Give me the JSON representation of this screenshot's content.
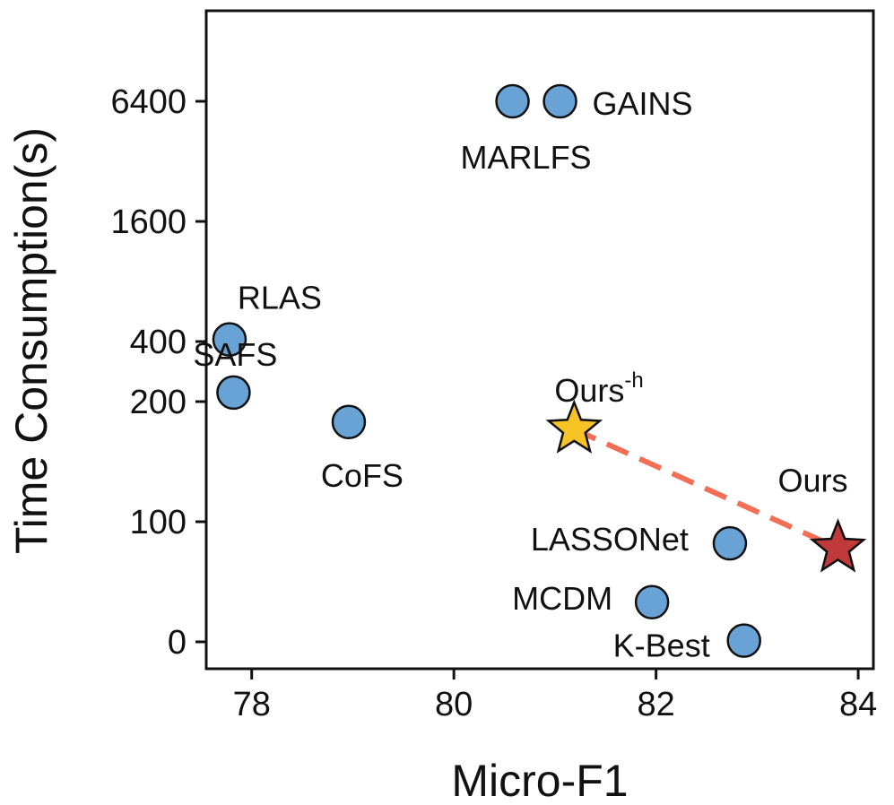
{
  "chart_data": {
    "type": "scatter",
    "xlabel": "Micro-F1",
    "ylabel": "Time Consumption(s)",
    "xlim": [
      77.55,
      84.15
    ],
    "x_ticks": [
      78,
      80,
      82,
      84
    ],
    "y_ticks": [
      {
        "value": 0,
        "label": "0"
      },
      {
        "value": 100,
        "label": "100"
      },
      {
        "value": 200,
        "label": "200"
      },
      {
        "value": 400,
        "label": "400"
      },
      {
        "value": 1600,
        "label": "1600"
      },
      {
        "value": 6400,
        "label": "6400"
      }
    ],
    "points": [
      {
        "name": "GAINS",
        "label": "GAINS",
        "x": 81.05,
        "y": 6400,
        "marker": "circle",
        "color": "#69a3d5"
      },
      {
        "name": "MARLFS",
        "label": "MARLFS",
        "x": 80.58,
        "y": 6400,
        "marker": "circle",
        "color": "#69a3d5"
      },
      {
        "name": "RLAS",
        "label": "RLAS",
        "x": 77.78,
        "y": 410,
        "marker": "circle",
        "color": "#69a3d5"
      },
      {
        "name": "SAFS",
        "label": "SAFS",
        "x": 77.82,
        "y": 222,
        "marker": "circle",
        "color": "#69a3d5"
      },
      {
        "name": "CoFS",
        "label": "CoFS",
        "x": 78.96,
        "y": 183,
        "marker": "circle",
        "color": "#69a3d5"
      },
      {
        "name": "LASSONet",
        "label": "LASSONet",
        "x": 82.73,
        "y": 82,
        "marker": "circle",
        "color": "#69a3d5"
      },
      {
        "name": "MCDM",
        "label": "MCDM",
        "x": 81.96,
        "y": 33,
        "marker": "circle",
        "color": "#69a3d5"
      },
      {
        "name": "K-Best",
        "label": "K-Best",
        "x": 82.87,
        "y": 1,
        "marker": "circle",
        "color": "#69a3d5"
      },
      {
        "name": "Ours-h",
        "label": "Ours",
        "label_sup": "-h",
        "x": 81.19,
        "y": 177,
        "marker": "star",
        "color": "#f7c325"
      },
      {
        "name": "Ours",
        "label": "Ours",
        "x": 83.8,
        "y": 78,
        "marker": "star",
        "color": "#c0393b"
      }
    ],
    "connector": {
      "from": "Ours-h",
      "to": "Ours",
      "style": "dashed",
      "color": "#f26f55"
    }
  }
}
